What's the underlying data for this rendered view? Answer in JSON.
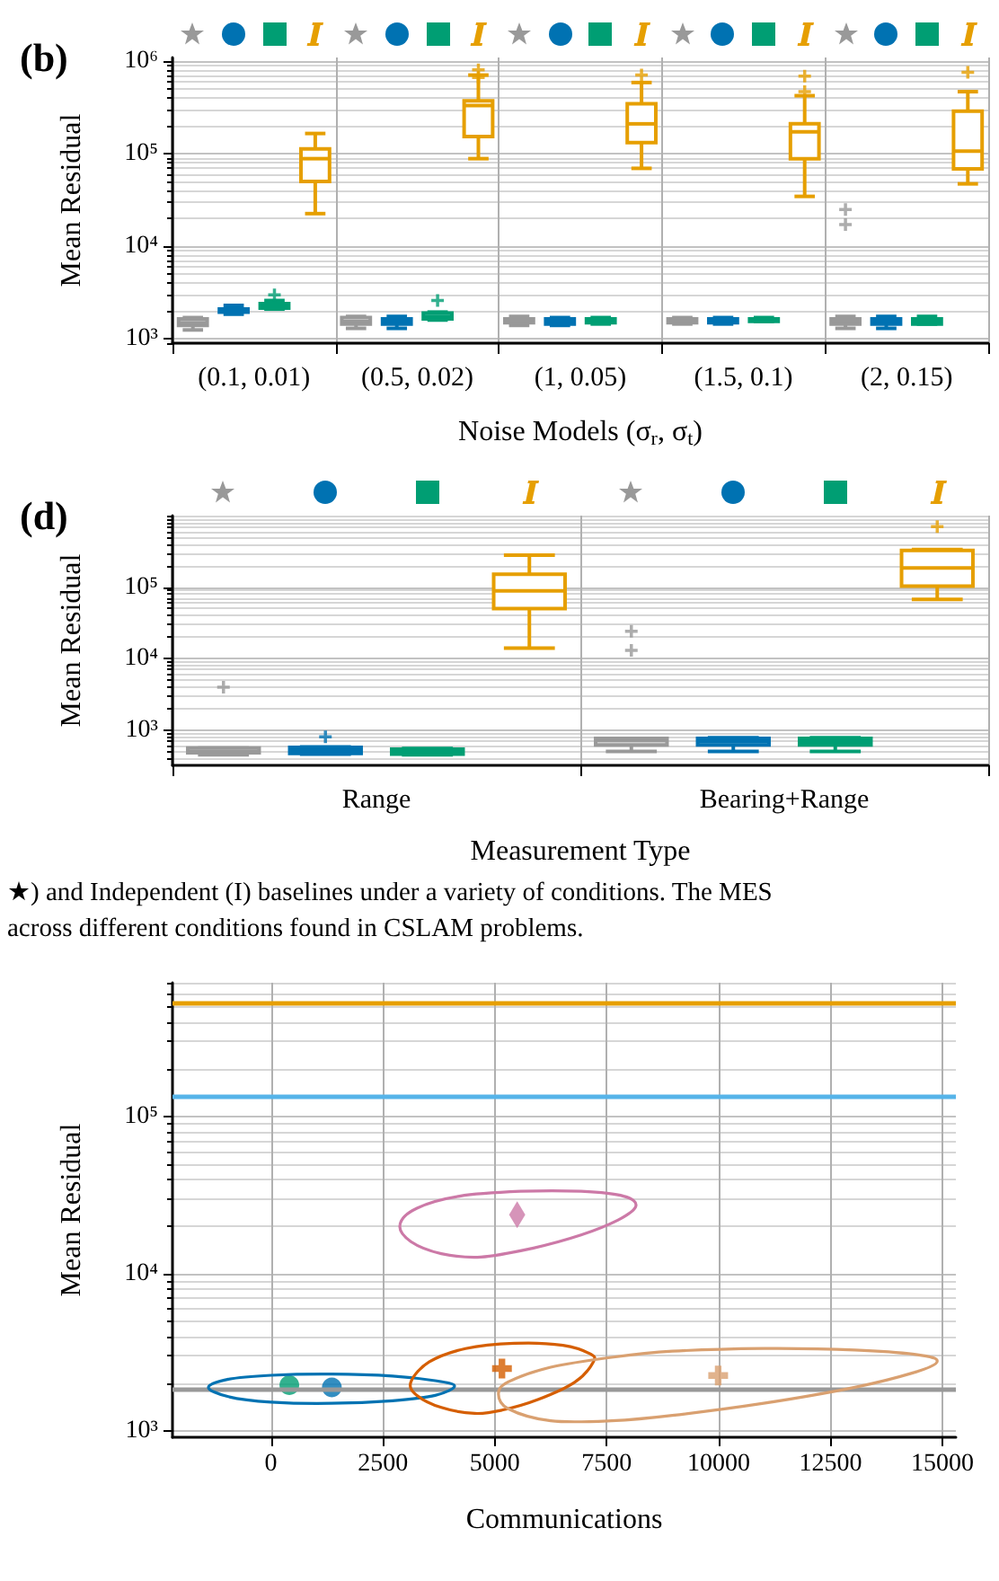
{
  "chart_data": [
    {
      "type": "box",
      "title": "(b)",
      "xlabel": "Noise Models (σ$_{r}$, σ$_{t}$)",
      "ylabel": "Mean Residual",
      "log": "y",
      "grid": true,
      "categories": [
        "(0.1, 0.01)",
        "(0.5, 0.02)",
        "(1, 0.05)",
        "(1.5, 0.1)",
        "(2, 0.15)"
      ],
      "ylim": [
        900,
        1100000
      ],
      "yticks": [
        {
          "value": 1000,
          "label": "10³"
        },
        {
          "value": 10000,
          "label": "10⁴"
        },
        {
          "value": 100000,
          "label": "10⁵"
        },
        {
          "value": 1000000,
          "label": "10⁶"
        }
      ],
      "series": [
        {
          "color": "#999999",
          "boxes": [
            {
              "low": 1250,
              "q1": 1400,
              "median": 1500,
              "q3": 1650,
              "high": 1700
            },
            {
              "low": 1300,
              "q1": 1450,
              "median": 1550,
              "q3": 1700,
              "high": 1750
            },
            {
              "low": 1400,
              "q1": 1500,
              "median": 1550,
              "q3": 1650,
              "high": 1750
            },
            {
              "low": 1450,
              "q1": 1500,
              "median": 1550,
              "q3": 1650,
              "high": 1700
            },
            {
              "low": 1300,
              "q1": 1450,
              "median": 1550,
              "q3": 1650,
              "high": 1750,
              "outliers": [
                17200,
                25000
              ]
            }
          ]
        },
        {
          "color": "#0072b2",
          "boxes": [
            {
              "low": 1850,
              "q1": 1950,
              "median": 2000,
              "q3": 2100,
              "high": 2300
            },
            {
              "low": 1300,
              "q1": 1450,
              "median": 1550,
              "q3": 1650,
              "high": 1750
            },
            {
              "low": 1400,
              "q1": 1450,
              "median": 1550,
              "q3": 1650,
              "high": 1700
            },
            {
              "low": 1450,
              "q1": 1500,
              "median": 1550,
              "q3": 1650,
              "high": 1700
            },
            {
              "low": 1300,
              "q1": 1450,
              "median": 1550,
              "q3": 1650,
              "high": 1750
            }
          ]
        },
        {
          "color": "#009e73",
          "boxes": [
            {
              "low": 2100,
              "q1": 2150,
              "median": 2250,
              "q3": 2400,
              "high": 2600,
              "outliers": [
                3000
              ]
            },
            {
              "low": 1600,
              "q1": 1650,
              "median": 1750,
              "q3": 1900,
              "high": 1950,
              "outliers": [
                2600
              ]
            },
            {
              "low": 1450,
              "q1": 1500,
              "median": 1550,
              "q3": 1650,
              "high": 1700
            },
            {
              "low": 1550,
              "q1": 1550,
              "median": 1600,
              "q3": 1650,
              "high": 1700
            },
            {
              "low": 1450,
              "q1": 1450,
              "median": 1550,
              "q3": 1650,
              "high": 1750
            }
          ]
        },
        {
          "color": "#e69f00",
          "boxes": [
            {
              "low": 22600,
              "q1": 50200,
              "median": 88700,
              "q3": 113000,
              "high": 166000
            },
            {
              "low": 88700,
              "q1": 154000,
              "median": 333000,
              "q3": 374000,
              "high": 710000,
              "outliers": [
                670000,
                807000
              ]
            },
            {
              "low": 69700,
              "q1": 132000,
              "median": 211000,
              "q3": 348000,
              "high": 590000,
              "outliers": [
                710000
              ]
            },
            {
              "low": 34700,
              "q1": 88700,
              "median": 173000,
              "q3": 211000,
              "high": 425000,
              "outliers": [
                470000,
                690000
              ]
            },
            {
              "low": 47400,
              "q1": 68700,
              "median": 107000,
              "q3": 289000,
              "high": 470000,
              "outliers": [
                762000
              ]
            }
          ]
        }
      ]
    },
    {
      "type": "box",
      "title": "(d)",
      "xlabel": "Measurement Type",
      "ylabel": "Mean Residual",
      "log": "y",
      "grid": true,
      "categories": [
        "Range",
        "Bearing+Range"
      ],
      "ylim": [
        320,
        1000000
      ],
      "yticks": [
        {
          "value": 1000,
          "label": "10³"
        },
        {
          "value": 10000,
          "label": "10⁴"
        },
        {
          "value": 100000,
          "label": "10⁵"
        }
      ],
      "annotations": [
        "★) and Independent (I) baselines under a variety of conditions. The MES",
        "across different conditions found in CSLAM problems."
      ],
      "series": [
        {
          "color": "#999999",
          "boxes": [
            {
              "low": 450,
              "q1": 480,
              "median": 500,
              "q3": 560,
              "high": 560,
              "outliers": [
                3980
              ]
            },
            {
              "low": 500,
              "q1": 620,
              "median": 710,
              "q3": 760,
              "high": 760,
              "outliers": [
                13000,
                24000
              ]
            }
          ]
        },
        {
          "color": "#0072b2",
          "boxes": [
            {
              "low": 460,
              "q1": 470,
              "median": 520,
              "q3": 570,
              "high": 580,
              "outliers": [
                800
              ]
            },
            {
              "low": 500,
              "q1": 620,
              "median": 690,
              "q3": 760,
              "high": 780
            }
          ]
        },
        {
          "color": "#009e73",
          "boxes": [
            {
              "low": 450,
              "q1": 460,
              "median": 500,
              "q3": 540,
              "high": 550
            },
            {
              "low": 500,
              "q1": 620,
              "median": 680,
              "q3": 760,
              "high": 780
            }
          ]
        },
        {
          "color": "#e69f00",
          "boxes": [
            {
              "low": 14000,
              "q1": 50100,
              "median": 88500,
              "q3": 151000,
              "high": 280000
            },
            {
              "low": 67100,
              "q1": 103000,
              "median": 185000,
              "q3": 326000,
              "high": 336000,
              "outliers": [
                703000
              ]
            }
          ]
        }
      ]
    },
    {
      "type": "scatter",
      "xlabel": "Communications",
      "ylabel": "Mean Residual",
      "log": "y",
      "grid": true,
      "xlim": [
        -2200,
        15300
      ],
      "xticks": [
        0,
        2500,
        5000,
        7500,
        10000,
        12500,
        15000
      ],
      "ylim": [
        910,
        710000
      ],
      "yticks": [
        {
          "value": 1000,
          "label": "10³"
        },
        {
          "value": 10000,
          "label": "10⁴"
        },
        {
          "value": 100000,
          "label": "10⁵"
        }
      ],
      "ref_lines": [
        {
          "axis": "y",
          "value": 530000,
          "color": "#e69f00"
        },
        {
          "axis": "y",
          "value": 136000,
          "color": "#56b4e9"
        },
        {
          "axis": "y",
          "value": 1850,
          "color": "#999999"
        }
      ],
      "series": [
        {
          "color": "#0072b2",
          "marker": "circle",
          "x": [
            1360
          ],
          "values": [
            1890
          ]
        },
        {
          "color": "#009e73",
          "marker": "circle",
          "x": [
            410
          ],
          "values": [
            1950
          ]
        },
        {
          "color": "#d55e00",
          "marker": "cross",
          "x": [
            5160
          ],
          "values": [
            2490
          ]
        },
        {
          "color": "#cc79a7",
          "marker": "diamond",
          "x": [
            5500
          ],
          "values": [
            23700
          ]
        },
        {
          "color": "#d9a070",
          "marker": "cross",
          "x": [
            9990
          ],
          "values": [
            2250
          ]
        }
      ]
    }
  ]
}
